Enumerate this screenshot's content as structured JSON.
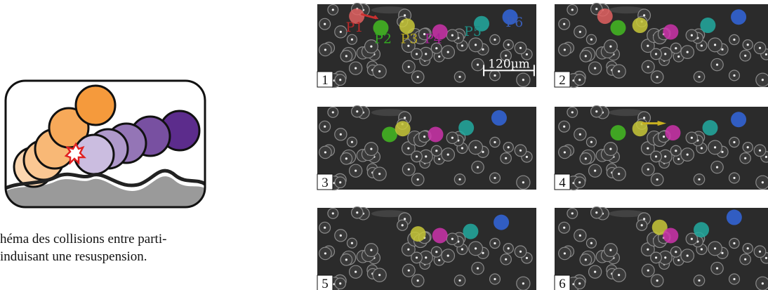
{
  "caption": {
    "line1": "héma des collisions entre parti-",
    "line2": "induisant une resuspension."
  },
  "scale_bar": {
    "label": "120µm"
  },
  "panels": [
    {
      "number": "1",
      "show_labels": true
    },
    {
      "number": "2"
    },
    {
      "number": "3"
    },
    {
      "number": "4"
    },
    {
      "number": "5"
    },
    {
      "number": "6"
    }
  ],
  "particles": [
    {
      "label": "P1",
      "color": "#e06060",
      "text_color": "#b8282a"
    },
    {
      "label": "P2",
      "color": "#44bb22",
      "text_color": "#33aa22"
    },
    {
      "label": "P3",
      "color": "#c8c838",
      "text_color": "#b8a820"
    },
    {
      "label": "P4",
      "color": "#cc33aa",
      "text_color": "#aa2299"
    },
    {
      "label": "P5",
      "color": "#22aaa0",
      "text_color": "#1f8f86"
    },
    {
      "label": "P6",
      "color": "#3366dd",
      "text_color": "#3b5fb8"
    }
  ],
  "schema_colors": {
    "orange": "#f59a3c",
    "orange_light": "#fbd6b0",
    "purple": "#5c2c8c",
    "purple_light": "#cbbde0",
    "collision": "#e02020",
    "ground_dark": "#222222",
    "ground_shadow": "#9a9a9a"
  }
}
